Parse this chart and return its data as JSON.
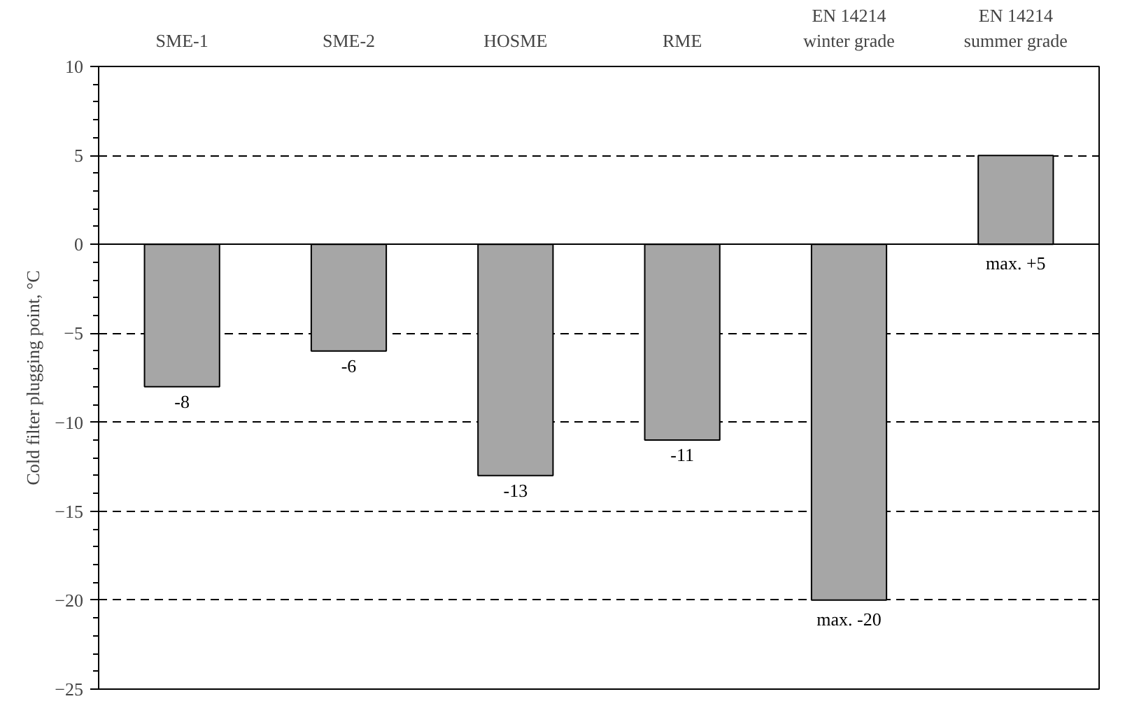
{
  "chart_data": {
    "type": "bar",
    "ylabel": "Cold filter plugging point, °C",
    "categories": [
      "SME-1",
      "SME-2",
      "HOSME",
      "RME",
      "EN 14214\nwinter grade",
      "EN 14214\nsummer grade"
    ],
    "values": [
      -8,
      -6,
      -13,
      -11,
      -20,
      5
    ],
    "value_labels": [
      "-8",
      "-6",
      "-13",
      "-11",
      "max. -20",
      "max. +5"
    ],
    "color": "#a6a6a6",
    "ylim": [
      -25,
      10
    ],
    "yticks": [
      -25,
      -20,
      -15,
      -10,
      -5,
      0,
      5,
      10
    ],
    "grid": "y"
  }
}
